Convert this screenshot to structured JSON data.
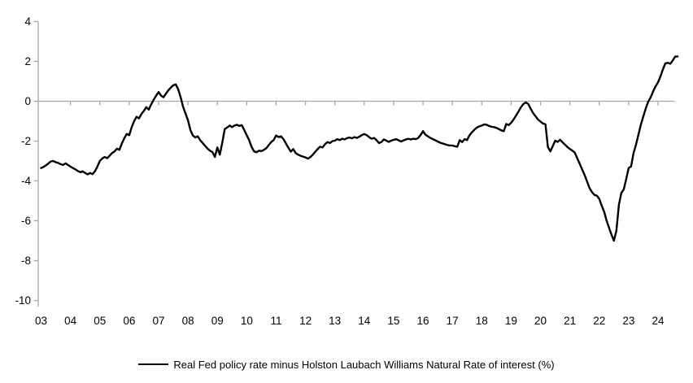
{
  "chart_data": {
    "type": "line",
    "title": "",
    "legend": [
      {
        "label": "Real Fed policy rate minus Holston Laubach Williams Natural Rate of interest (%)",
        "color": "#000000",
        "style": "solid"
      }
    ],
    "x_axis": {
      "tick_labels": [
        "03",
        "04",
        "05",
        "06",
        "07",
        "08",
        "09",
        "10",
        "11",
        "12",
        "13",
        "14",
        "15",
        "16",
        "17",
        "18",
        "19",
        "20",
        "21",
        "22",
        "23",
        "24"
      ],
      "start_year": 2003,
      "interval_years": 1
    },
    "y_axis": {
      "ticks": [
        4,
        2,
        0,
        -2,
        -4,
        -6,
        -8,
        -10
      ],
      "tick_labels": [
        "4",
        "2",
        "0",
        "-2",
        "-4",
        "-6",
        "-8",
        "-10"
      ],
      "range": [
        -10,
        4
      ]
    },
    "grid": false,
    "zero_axis_line": true,
    "legend_position": "bottom-center",
    "colors": {
      "line": "#000000",
      "axis": "#a6a6a6",
      "text": "#000000",
      "background": "#ffffff"
    },
    "series": [
      {
        "name": "Real Fed policy rate minus Holston Laubach Williams Natural Rate of interest (%)",
        "x_start": 2003.0,
        "x_step_years": 0.08333,
        "values": [
          -3.35,
          -3.3,
          -3.22,
          -3.12,
          -3.02,
          -3.0,
          -3.06,
          -3.1,
          -3.16,
          -3.2,
          -3.12,
          -3.2,
          -3.28,
          -3.35,
          -3.42,
          -3.5,
          -3.56,
          -3.52,
          -3.6,
          -3.67,
          -3.6,
          -3.66,
          -3.52,
          -3.28,
          -3.0,
          -2.87,
          -2.8,
          -2.86,
          -2.73,
          -2.6,
          -2.52,
          -2.38,
          -2.44,
          -2.12,
          -1.86,
          -1.64,
          -1.7,
          -1.3,
          -1.0,
          -0.78,
          -0.86,
          -0.64,
          -0.48,
          -0.3,
          -0.42,
          -0.16,
          0.08,
          0.28,
          0.46,
          0.28,
          0.2,
          0.38,
          0.55,
          0.68,
          0.8,
          0.85,
          0.6,
          0.2,
          -0.28,
          -0.62,
          -0.95,
          -1.45,
          -1.72,
          -1.82,
          -1.76,
          -1.96,
          -2.1,
          -2.24,
          -2.38,
          -2.48,
          -2.55,
          -2.8,
          -2.32,
          -2.68,
          -2.1,
          -1.4,
          -1.32,
          -1.22,
          -1.3,
          -1.22,
          -1.18,
          -1.24,
          -1.2,
          -1.45,
          -1.7,
          -1.95,
          -2.3,
          -2.52,
          -2.56,
          -2.48,
          -2.5,
          -2.44,
          -2.36,
          -2.2,
          -2.05,
          -1.95,
          -1.72,
          -1.8,
          -1.76,
          -1.9,
          -2.12,
          -2.33,
          -2.53,
          -2.4,
          -2.6,
          -2.68,
          -2.74,
          -2.78,
          -2.82,
          -2.88,
          -2.8,
          -2.68,
          -2.54,
          -2.4,
          -2.28,
          -2.32,
          -2.15,
          -2.05,
          -2.1,
          -2.0,
          -1.98,
          -1.9,
          -1.95,
          -1.88,
          -1.92,
          -1.85,
          -1.82,
          -1.86,
          -1.8,
          -1.84,
          -1.78,
          -1.7,
          -1.65,
          -1.7,
          -1.8,
          -1.88,
          -1.84,
          -1.95,
          -2.1,
          -2.05,
          -1.92,
          -1.97,
          -2.04,
          -1.98,
          -1.94,
          -1.9,
          -1.96,
          -2.02,
          -1.97,
          -1.92,
          -1.88,
          -1.92,
          -1.88,
          -1.9,
          -1.85,
          -1.7,
          -1.5,
          -1.68,
          -1.76,
          -1.84,
          -1.9,
          -1.96,
          -2.02,
          -2.08,
          -2.12,
          -2.16,
          -2.2,
          -2.22,
          -2.22,
          -2.26,
          -2.28,
          -1.95,
          -2.05,
          -1.9,
          -1.95,
          -1.7,
          -1.55,
          -1.43,
          -1.32,
          -1.26,
          -1.22,
          -1.16,
          -1.18,
          -1.24,
          -1.28,
          -1.3,
          -1.34,
          -1.4,
          -1.46,
          -1.5,
          -1.14,
          -1.2,
          -1.08,
          -0.92,
          -0.72,
          -0.52,
          -0.3,
          -0.14,
          -0.06,
          -0.14,
          -0.38,
          -0.6,
          -0.76,
          -0.92,
          -1.02,
          -1.12,
          -1.16,
          -2.3,
          -2.52,
          -2.25,
          -1.98,
          -2.04,
          -1.93,
          -2.06,
          -2.18,
          -2.3,
          -2.4,
          -2.48,
          -2.58,
          -2.86,
          -3.14,
          -3.42,
          -3.7,
          -4.02,
          -4.35,
          -4.56,
          -4.7,
          -4.74,
          -4.9,
          -5.25,
          -5.55,
          -6.0,
          -6.35,
          -6.7,
          -7.0,
          -6.5,
          -5.2,
          -4.6,
          -4.42,
          -3.9,
          -3.35,
          -3.27,
          -2.6,
          -2.18,
          -1.68,
          -1.16,
          -0.75,
          -0.35,
          -0.02,
          0.2,
          0.5,
          0.75,
          0.95,
          1.25,
          1.6,
          1.9,
          1.93,
          1.88,
          2.05,
          2.24,
          2.25
        ]
      }
    ]
  }
}
